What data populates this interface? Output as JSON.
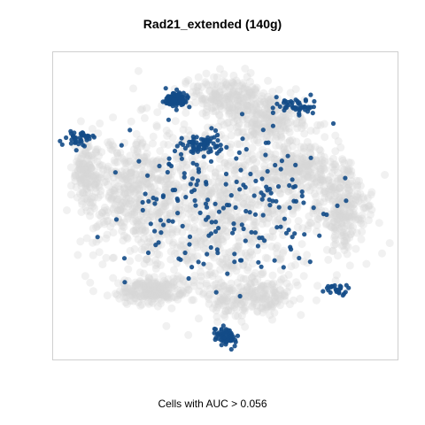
{
  "chart_data": {
    "type": "scatter",
    "title": "Rad21_extended (140g)",
    "caption": "Cells with AUC > 0.056",
    "xlabel": "",
    "ylabel": "",
    "axes_visible": false,
    "grid": false,
    "legend": "none",
    "colors": {
      "background_cells": "#d6d6d6",
      "highlighted_cells": "#134b87",
      "frame": "#cfcfcf"
    },
    "series": [
      {
        "role": "background",
        "clusters": [
          {
            "cx": 0.5,
            "cy": 0.52,
            "sx": 0.32,
            "sy": 0.27,
            "n": 900
          },
          {
            "cx": 0.23,
            "cy": 0.45,
            "sx": 0.14,
            "sy": 0.2,
            "n": 400
          },
          {
            "cx": 0.52,
            "cy": 0.14,
            "sx": 0.14,
            "sy": 0.06,
            "n": 220
          },
          {
            "cx": 0.62,
            "cy": 0.22,
            "sx": 0.13,
            "sy": 0.07,
            "n": 200
          },
          {
            "cx": 0.28,
            "cy": 0.78,
            "sx": 0.11,
            "sy": 0.05,
            "n": 200
          },
          {
            "cx": 0.56,
            "cy": 0.8,
            "sx": 0.16,
            "sy": 0.06,
            "n": 220
          },
          {
            "cx": 0.85,
            "cy": 0.5,
            "sx": 0.07,
            "sy": 0.14,
            "n": 250
          },
          {
            "cx": 0.09,
            "cy": 0.4,
            "sx": 0.04,
            "sy": 0.1,
            "n": 120
          },
          {
            "cx": 0.72,
            "cy": 0.38,
            "sx": 0.1,
            "sy": 0.08,
            "n": 200
          }
        ]
      },
      {
        "role": "highlighted",
        "clusters": [
          {
            "cx": 0.355,
            "cy": 0.15,
            "sx": 0.035,
            "sy": 0.025,
            "n": 90
          },
          {
            "cx": 0.44,
            "cy": 0.3,
            "sx": 0.06,
            "sy": 0.03,
            "n": 70
          },
          {
            "cx": 0.07,
            "cy": 0.28,
            "sx": 0.045,
            "sy": 0.03,
            "n": 40
          },
          {
            "cx": 0.71,
            "cy": 0.17,
            "sx": 0.06,
            "sy": 0.03,
            "n": 45
          },
          {
            "cx": 0.5,
            "cy": 0.93,
            "sx": 0.03,
            "sy": 0.03,
            "n": 60
          },
          {
            "cx": 0.83,
            "cy": 0.78,
            "sx": 0.03,
            "sy": 0.02,
            "n": 25
          },
          {
            "cx": 0.5,
            "cy": 0.5,
            "sx": 0.3,
            "sy": 0.25,
            "n": 200
          }
        ]
      }
    ]
  }
}
